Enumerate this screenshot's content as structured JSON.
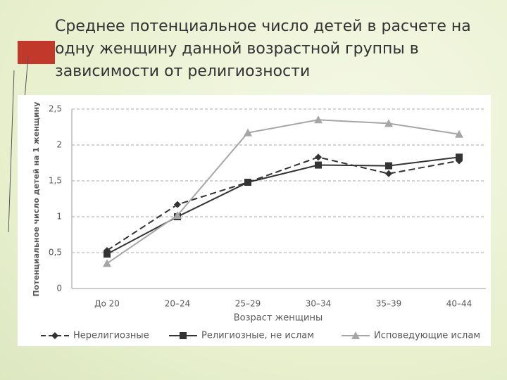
{
  "chart_data": {
    "type": "line",
    "title": "Среднее потенциальное число детей в расчете на одну женщину данной возрастной группы в зависимости от религиозности",
    "x_label": "Возраст женщины",
    "y_label": "Потенциальное число детей на 1 женщину",
    "categories": [
      "До 20",
      "20–24",
      "25–29",
      "30–34",
      "35–39",
      "40–44"
    ],
    "series": [
      {
        "name": "Нерелигиозные",
        "color": "#333333",
        "marker": "diamond",
        "dash": true,
        "values": [
          0.53,
          1.17,
          1.48,
          1.83,
          1.6,
          1.78
        ]
      },
      {
        "name": "Религиозные, не ислам",
        "color": "#333333",
        "marker": "square",
        "dash": false,
        "values": [
          0.48,
          1.0,
          1.48,
          1.72,
          1.71,
          1.83
        ]
      },
      {
        "name": "Исповедующие ислам",
        "color": "#a6a6a6",
        "marker": "triangle",
        "dash": false,
        "values": [
          0.35,
          1.02,
          2.17,
          2.35,
          2.3,
          2.15
        ]
      }
    ],
    "ylim": [
      0,
      2.5
    ],
    "yticks": [
      0,
      {
        "value": 0.5,
        "label": "0,5"
      },
      1,
      {
        "value": 1.5,
        "label": "1,5"
      },
      2,
      {
        "value": 2.5,
        "label": "2,5"
      }
    ],
    "grid": true,
    "legend": "bottom"
  }
}
